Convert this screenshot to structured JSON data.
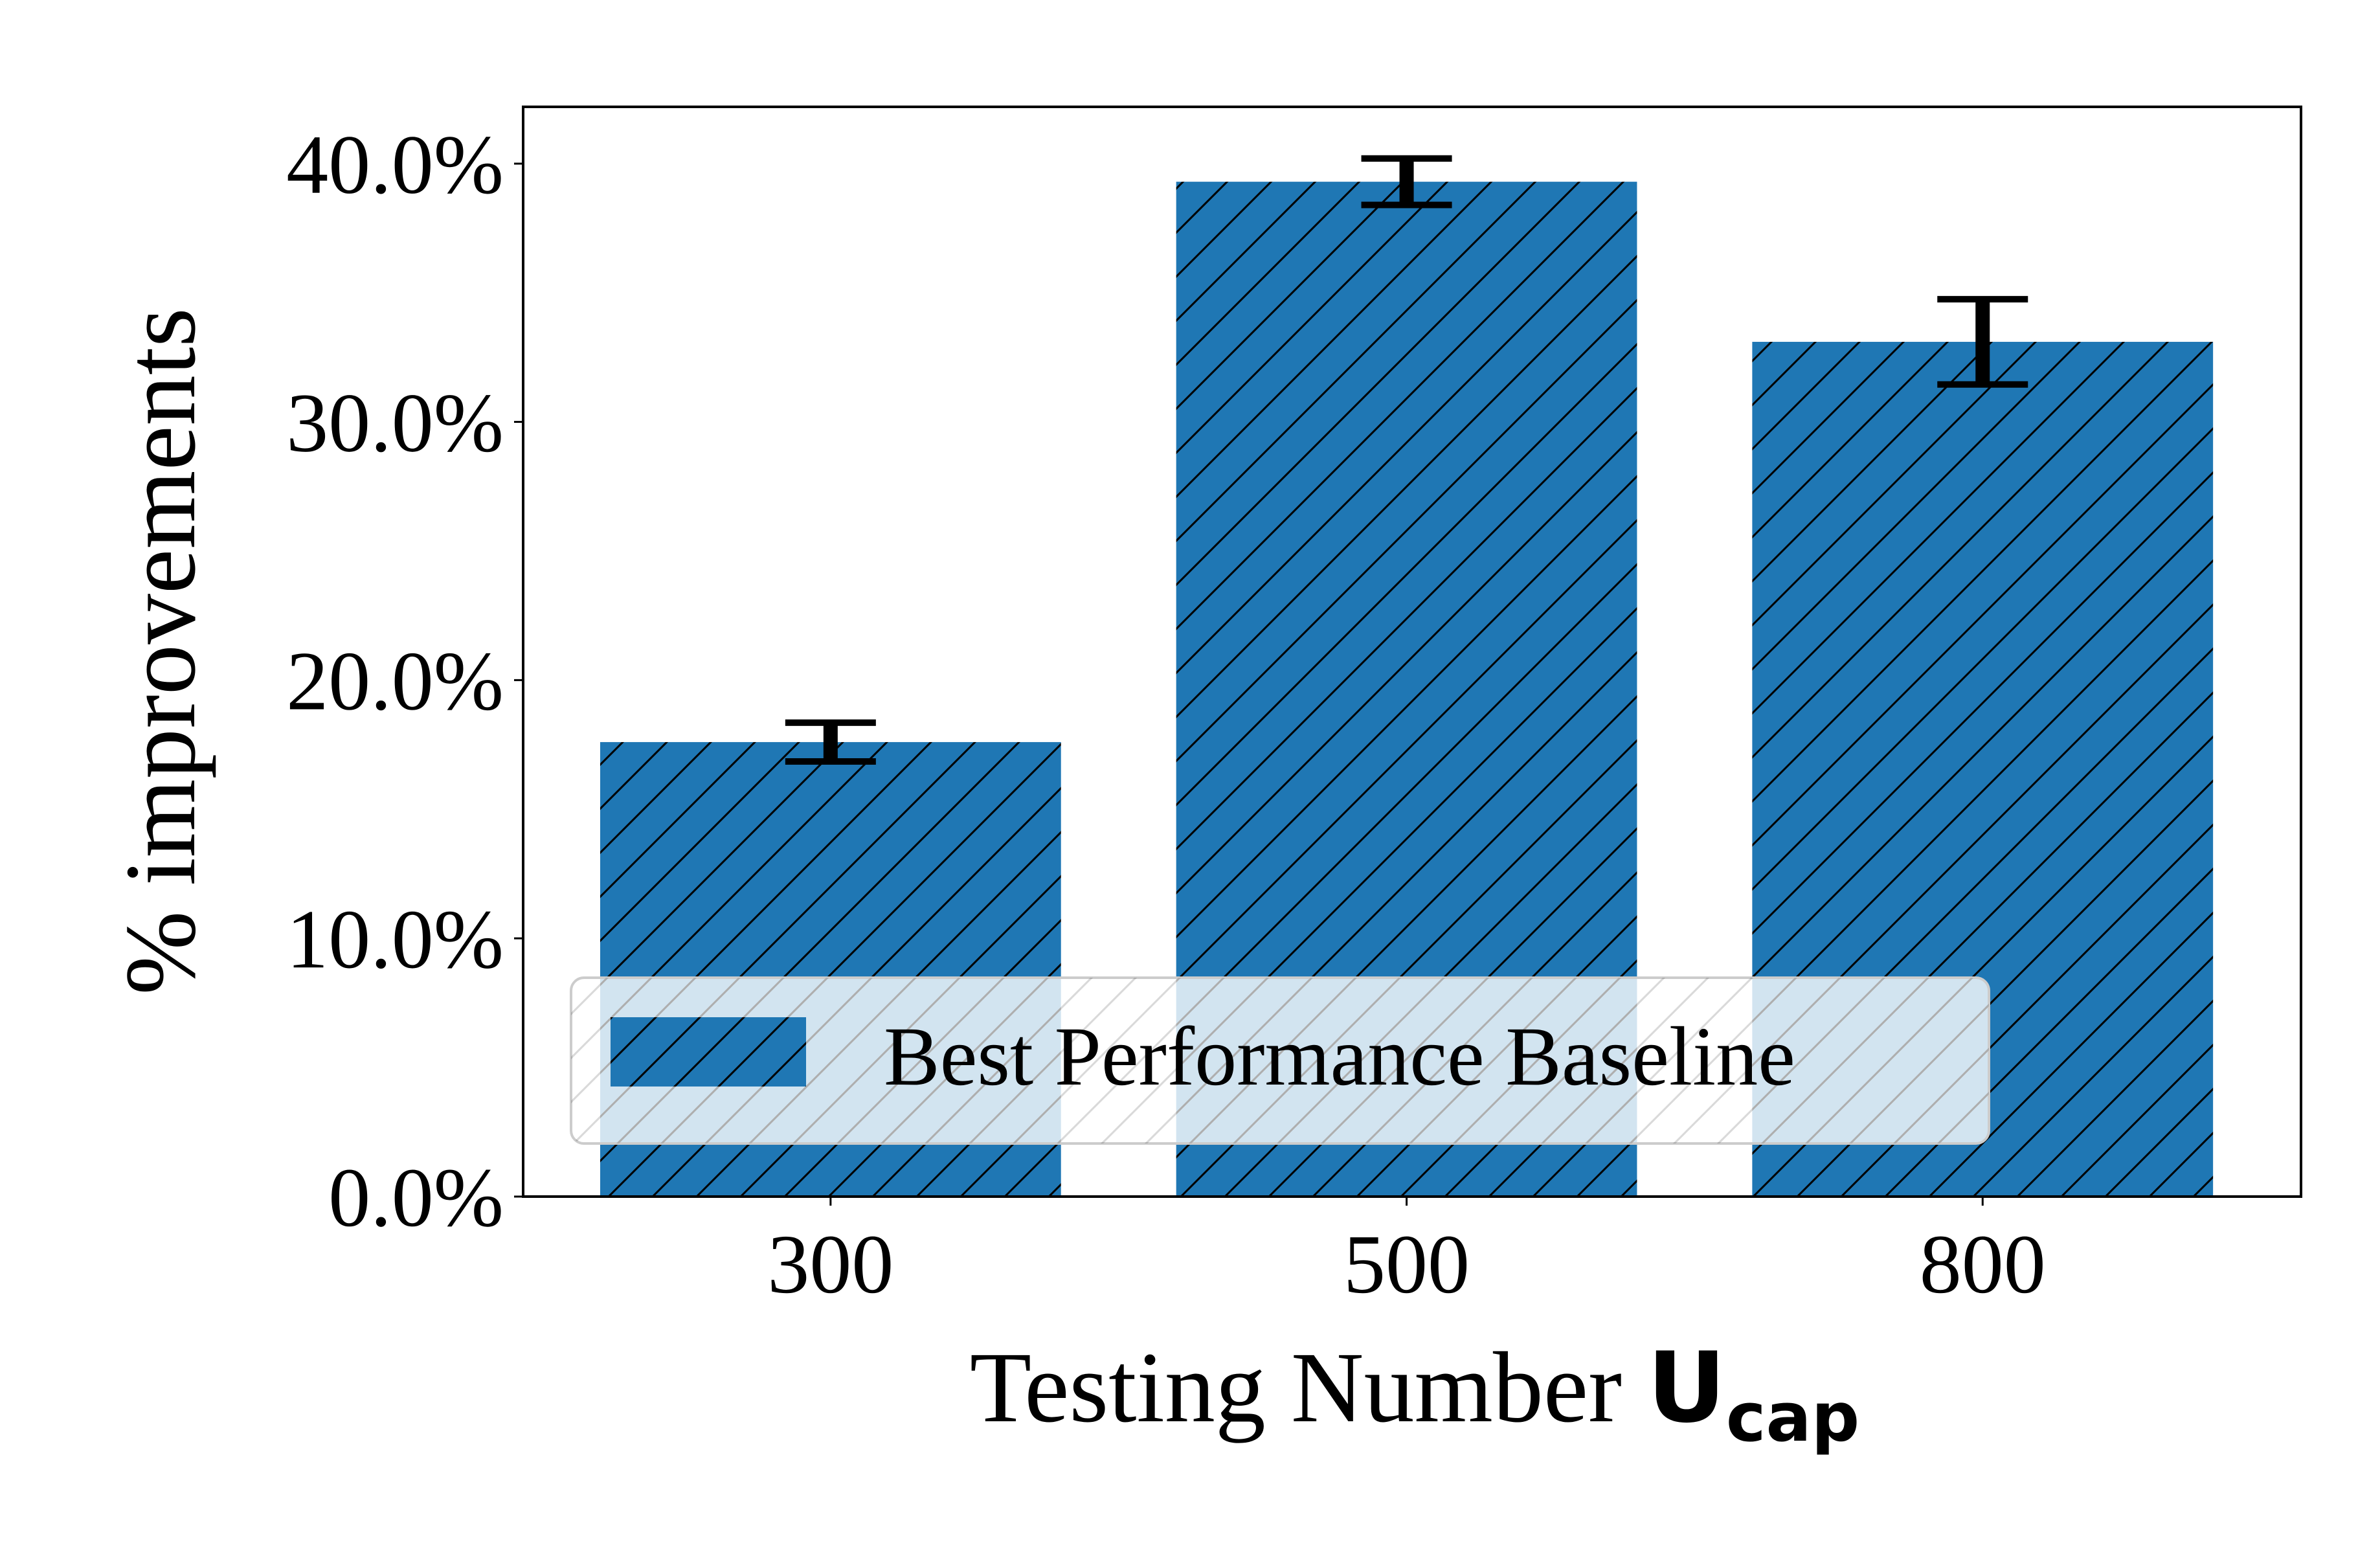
{
  "chart_data": {
    "type": "bar",
    "categories": [
      "300",
      "500",
      "800"
    ],
    "series": [
      {
        "name": "Best Performance Baseline",
        "values": [
          17.6,
          39.3,
          33.1
        ],
        "errors": [
          0.75,
          0.9,
          1.65
        ],
        "color": "#1f77b4",
        "hatch": "diagonal"
      }
    ],
    "xlabel": {
      "text": "Testing Number ",
      "symbol": "U",
      "subscript": "cap"
    },
    "ylabel": "% improvements",
    "ylim": [
      0,
      42.2
    ],
    "yticks": [
      0,
      10,
      20,
      30,
      40
    ],
    "ytick_labels": [
      "0.0%",
      "10.0%",
      "20.0%",
      "30.0%",
      "40.0%"
    ],
    "legend": {
      "placement": "lower-left",
      "entries": [
        "Best Performance Baseline"
      ]
    },
    "grid": false
  }
}
